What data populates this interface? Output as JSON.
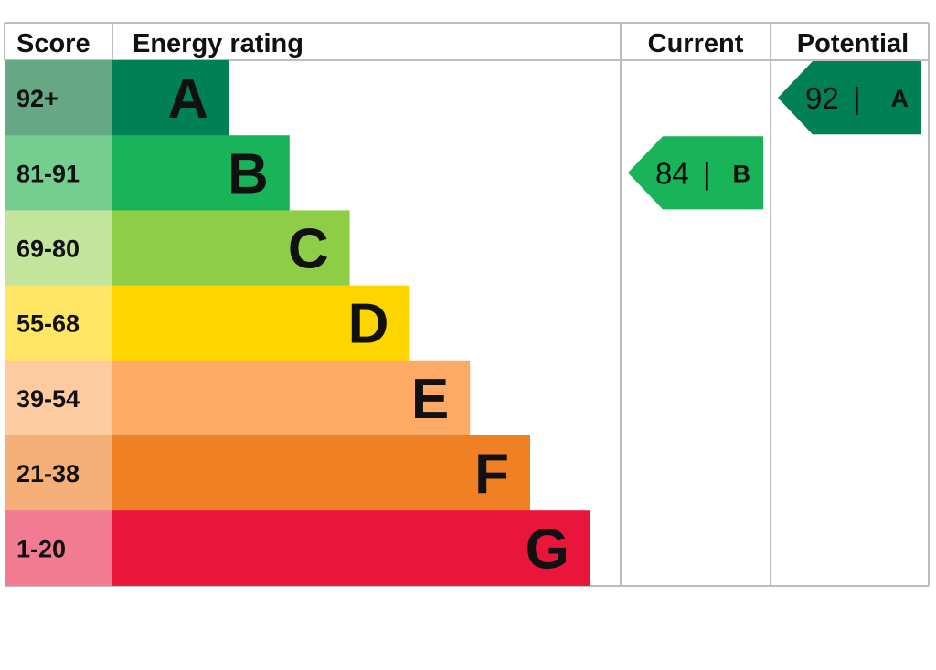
{
  "headers": {
    "score": "Score",
    "energy_rating": "Energy rating",
    "current": "Current",
    "potential": "Potential"
  },
  "chart_data": {
    "type": "bar",
    "categories": [
      "A",
      "B",
      "C",
      "D",
      "E",
      "F",
      "G"
    ],
    "bands": [
      {
        "letter": "A",
        "range": "92+",
        "color": "#008054",
        "score_color": "#66A886"
      },
      {
        "letter": "B",
        "range": "81-91",
        "color": "#19B459",
        "score_color": "#73CE8F"
      },
      {
        "letter": "C",
        "range": "69-80",
        "color": "#8DCE46",
        "score_color": "#C3E49C"
      },
      {
        "letter": "D",
        "range": "55-68",
        "color": "#FFD500",
        "score_color": "#FFE665"
      },
      {
        "letter": "E",
        "range": "39-54",
        "color": "#FCAA65",
        "score_color": "#FECBA1"
      },
      {
        "letter": "F",
        "range": "21-38",
        "color": "#EF8023",
        "score_color": "#F5B07A"
      },
      {
        "letter": "G",
        "range": "1-20",
        "color": "#E9153B",
        "score_color": "#F27A91"
      }
    ],
    "current": {
      "value": 84,
      "band": "B",
      "separator": "|"
    },
    "potential": {
      "value": 92,
      "band": "A",
      "separator": "|"
    },
    "grid_color": "#BDBDBD"
  }
}
